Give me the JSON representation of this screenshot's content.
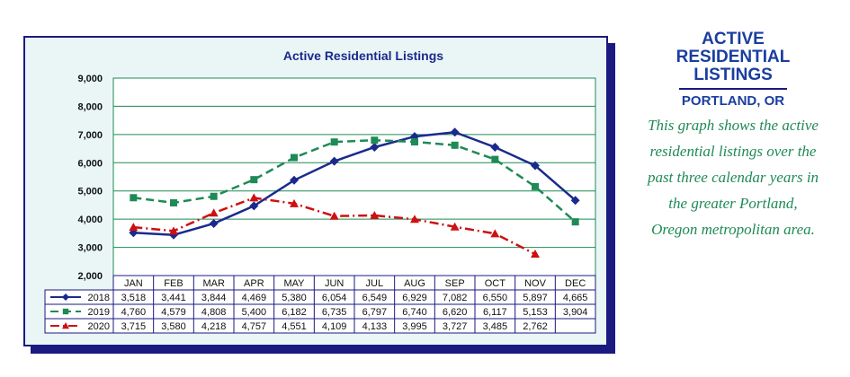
{
  "side_panel": {
    "title_lines": [
      "ACTIVE",
      "RESIDENTIAL",
      "LISTINGS"
    ],
    "subtitle": "PORTLAND, OR",
    "description_lines": [
      "This graph shows the active",
      "residential listings over the",
      "past three calendar years in",
      "the greater Portland,",
      "Oregon metropolitan area."
    ]
  },
  "chart_data": {
    "type": "line",
    "title": "Active Residential Listings",
    "categories": [
      "JAN",
      "FEB",
      "MAR",
      "APR",
      "MAY",
      "JUN",
      "JUL",
      "AUG",
      "SEP",
      "OCT",
      "NOV",
      "DEC"
    ],
    "ylim": [
      2000,
      9000
    ],
    "yticks": [
      2000,
      3000,
      4000,
      5000,
      6000,
      7000,
      8000,
      9000
    ],
    "ytick_labels": [
      "2,000",
      "3,000",
      "4,000",
      "5,000",
      "6,000",
      "7,000",
      "8,000",
      "9,000"
    ],
    "grid": true,
    "legend": "table-below",
    "series": [
      {
        "name": "2018",
        "color": "#1a2a8c",
        "marker": "diamond",
        "dash": "solid",
        "values": [
          3518,
          3441,
          3844,
          4469,
          5380,
          6054,
          6549,
          6929,
          7082,
          6550,
          5897,
          4665
        ],
        "labels": [
          "3,518",
          "3,441",
          "3,844",
          "4,469",
          "5,380",
          "6,054",
          "6,549",
          "6,929",
          "7,082",
          "6,550",
          "5,897",
          "4,665"
        ]
      },
      {
        "name": "2019",
        "color": "#1e8a55",
        "marker": "square",
        "dash": "dashed",
        "values": [
          4760,
          4579,
          4808,
          5400,
          6182,
          6735,
          6797,
          6740,
          6620,
          6117,
          5153,
          3904
        ],
        "labels": [
          "4,760",
          "4,579",
          "4,808",
          "5,400",
          "6,182",
          "6,735",
          "6,797",
          "6,740",
          "6,620",
          "6,117",
          "5,153",
          "3,904"
        ]
      },
      {
        "name": "2020",
        "color": "#cc1111",
        "marker": "triangle",
        "dash": "dashdot",
        "values": [
          3715,
          3580,
          4218,
          4757,
          4551,
          4109,
          4133,
          3995,
          3727,
          3485,
          2762,
          null
        ],
        "labels": [
          "3,715",
          "3,580",
          "4,218",
          "4,757",
          "4,551",
          "4,109",
          "4,133",
          "3,995",
          "3,727",
          "3,485",
          "2,762",
          ""
        ]
      }
    ]
  }
}
